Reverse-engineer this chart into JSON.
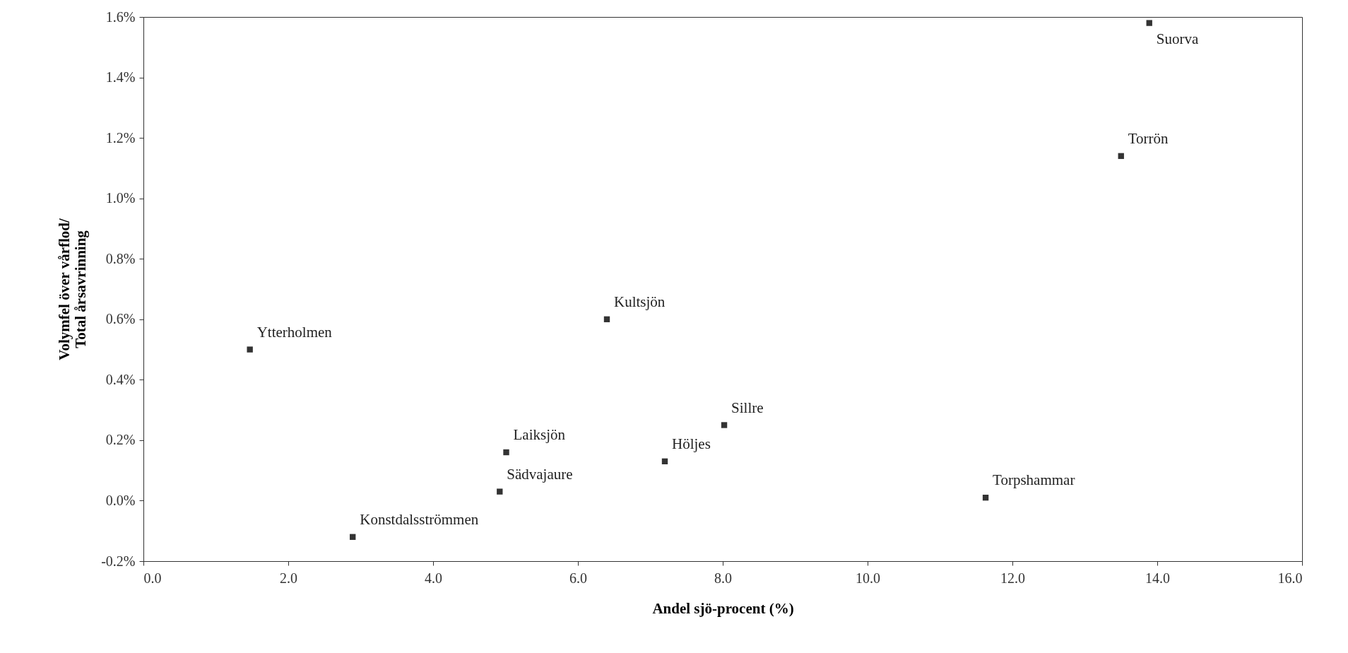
{
  "chart_data": {
    "type": "scatter",
    "xlabel": "Andel sjö-procent (%)",
    "ylabel": "Volymfel över vårflod/\nTotal årsavrinning",
    "x": [
      13.89,
      13.5,
      6.4,
      1.47,
      8.02,
      7.2,
      5.01,
      4.92,
      2.89,
      11.63
    ],
    "series": [
      {
        "color": "#333333",
        "values": [
          1.58,
          1.14,
          0.6,
          0.5,
          0.25,
          0.13,
          0.16,
          0.03,
          -0.12,
          0.01
        ]
      }
    ],
    "annotations": [
      {
        "text": "Suorva",
        "x": 13.89,
        "y": 1.58
      },
      {
        "text": "Torrön",
        "x": 13.5,
        "y": 1.14
      },
      {
        "text": "Kultsjön",
        "x": 6.4,
        "y": 0.6
      },
      {
        "text": "Ytterholmen",
        "x": 1.47,
        "y": 0.5
      },
      {
        "text": "Sillre",
        "x": 8.02,
        "y": 0.25
      },
      {
        "text": "Höljes",
        "x": 7.2,
        "y": 0.13
      },
      {
        "text": "Laiksjön",
        "x": 5.01,
        "y": 0.16
      },
      {
        "text": "Sädvajaure",
        "x": 4.92,
        "y": 0.03
      },
      {
        "text": "Konstdalsströmmen",
        "x": 2.89,
        "y": -0.12
      },
      {
        "text": "Torpshammar",
        "x": 11.63,
        "y": 0.01
      }
    ],
    "xlim": [
      0,
      16
    ],
    "xticks": [
      {
        "value": 0,
        "label": "0.0"
      },
      {
        "value": 2,
        "label": "2.0"
      },
      {
        "value": 4,
        "label": "4.0"
      },
      {
        "value": 6,
        "label": "6.0"
      },
      {
        "value": 8,
        "label": "8.0"
      },
      {
        "value": 10,
        "label": "10.0"
      },
      {
        "value": 12,
        "label": "12.0"
      },
      {
        "value": 14,
        "label": "14.0"
      },
      {
        "value": 16,
        "label": "16.0"
      }
    ],
    "ylim": [
      -0.2,
      1.6
    ],
    "yticks": [
      {
        "value": -0.2,
        "label": "-0.2%"
      },
      {
        "value": 0,
        "label": "0.0%"
      },
      {
        "value": 0.2,
        "label": "0.2%"
      },
      {
        "value": 0.4,
        "label": "0.4%"
      },
      {
        "value": 0.6,
        "label": "0.6%"
      },
      {
        "value": 0.8,
        "label": "0.8%"
      },
      {
        "value": 1.0,
        "label": "1.0%"
      },
      {
        "value": 1.2,
        "label": "1.2%"
      },
      {
        "value": 1.4,
        "label": "1.4%"
      },
      {
        "value": 1.6,
        "label": "1.6%"
      }
    ],
    "grid": false,
    "marker": "square"
  }
}
